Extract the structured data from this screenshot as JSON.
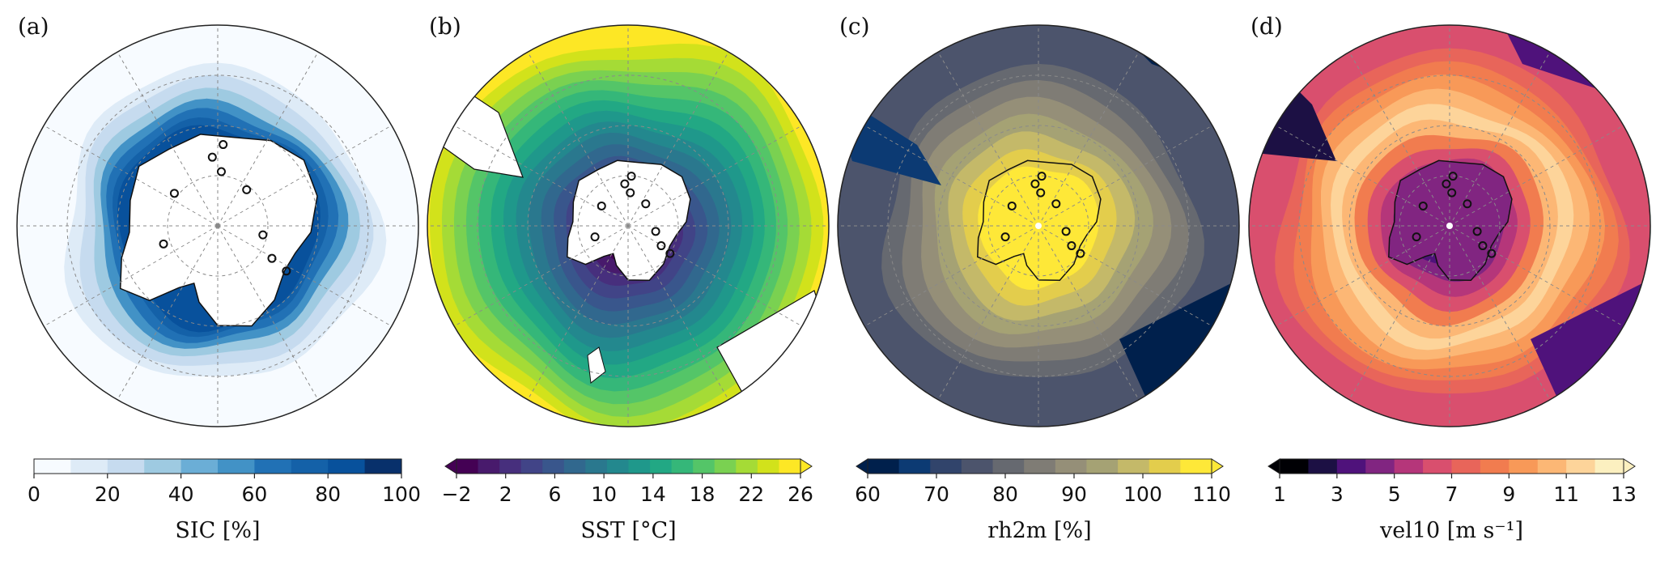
{
  "figure": {
    "panels": [
      "(a)",
      "(b)",
      "(c)",
      "(d)"
    ]
  },
  "chart_data": [
    {
      "type": "heatmap",
      "panel": "(a)",
      "variable": "SIC",
      "colorbar_label": "SIC [%]",
      "colorbar_ticks": [
        0,
        20,
        40,
        60,
        80,
        100
      ],
      "levels": [
        0,
        10,
        20,
        30,
        40,
        50,
        60,
        70,
        80,
        90,
        100
      ],
      "colors": [
        "#f7fbff",
        "#deebf7",
        "#c6dbef",
        "#9ecae1",
        "#6baed6",
        "#4292c6",
        "#2171b5",
        "#1461a8",
        "#08519c",
        "#08306b"
      ],
      "extend": "neither",
      "projection": "south polar stereographic",
      "grid": true
    },
    {
      "type": "heatmap",
      "panel": "(b)",
      "variable": "SST",
      "colorbar_label": "SST [°C]",
      "colorbar_ticks": [
        "−2",
        "2",
        "6",
        "10",
        "14",
        "18",
        "22",
        "26"
      ],
      "levels": [
        -2,
        0,
        2,
        4,
        6,
        8,
        10,
        12,
        14,
        16,
        18,
        20,
        22,
        24,
        26
      ],
      "colors": [
        "#440154",
        "#481a6c",
        "#472f7d",
        "#414487",
        "#39568c",
        "#31688e",
        "#2a788e",
        "#23888e",
        "#1f988b",
        "#22a884",
        "#35b779",
        "#54c568",
        "#7ad151",
        "#a5db36",
        "#d2e21b",
        "#fde725"
      ],
      "extend": "both",
      "projection": "south polar stereographic",
      "grid": true
    },
    {
      "type": "heatmap",
      "panel": "(c)",
      "variable": "rh2m",
      "colorbar_label": "rh2m [%]",
      "colorbar_ticks": [
        60,
        70,
        80,
        90,
        100,
        110
      ],
      "levels": [
        60,
        65,
        70,
        75,
        80,
        85,
        90,
        95,
        100,
        105,
        110
      ],
      "colors": [
        "#00204c",
        "#0c3a73",
        "#31446b",
        "#4c546c",
        "#666970",
        "#7f7c75",
        "#958f78",
        "#a5a274",
        "#c4b969",
        "#e3cd4c",
        "#fee838"
      ],
      "extend": "both",
      "projection": "south polar stereographic",
      "grid": true
    },
    {
      "type": "heatmap",
      "panel": "(d)",
      "variable": "vel10",
      "colorbar_label": "vel10 [m s⁻¹]",
      "colorbar_ticks": [
        1,
        3,
        5,
        7,
        9,
        11,
        13
      ],
      "levels": [
        1,
        2,
        3,
        4,
        5,
        6,
        7,
        8,
        9,
        10,
        11,
        12,
        13
      ],
      "colors": [
        "#000004",
        "#1c1044",
        "#4f127b",
        "#812581",
        "#b5367a",
        "#d94f6e",
        "#e8655a",
        "#f17c4f",
        "#f89958",
        "#fcb775",
        "#fdd49a",
        "#fcf0c0"
      ],
      "extend": "both",
      "projection": "south polar stereographic",
      "grid": true
    }
  ]
}
